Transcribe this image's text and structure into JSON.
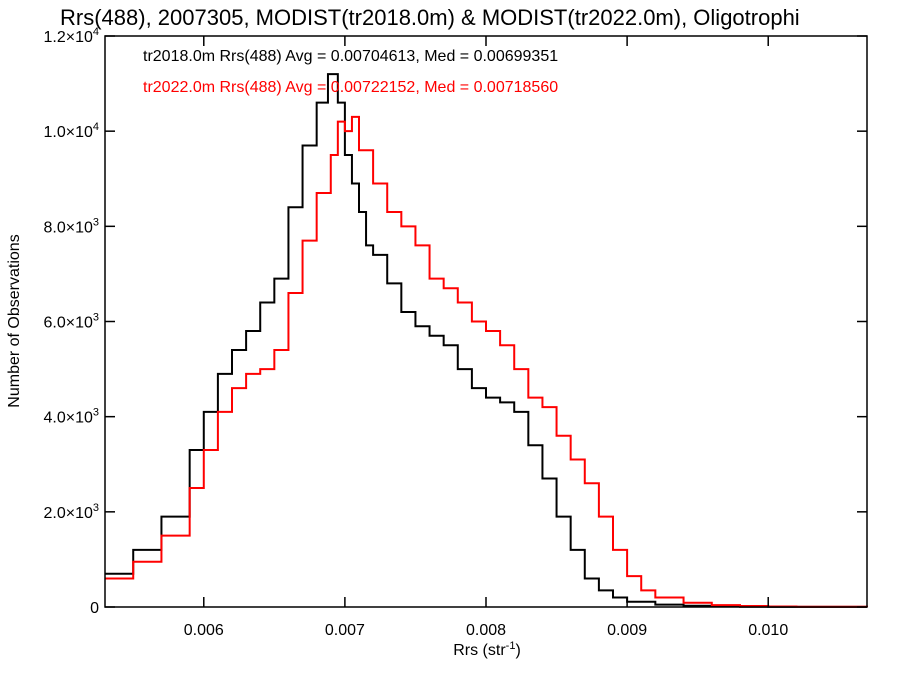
{
  "chart_data": {
    "type": "line",
    "title": "Rrs(488), 2007305, MODIST(tr2018.0m) & MODIST(tr2022.0m), Oligotrophi",
    "xlabel": "Rrs (str",
    "xlabel_sup": "-1",
    "xlabel_end": ")",
    "ylabel": "Number of Observations",
    "xlim": [
      0.0053,
      0.0107
    ],
    "ylim": [
      0,
      12000
    ],
    "x_ticks": [
      {
        "value": 0.006,
        "label": "0.006"
      },
      {
        "value": 0.007,
        "label": "0.007"
      },
      {
        "value": 0.008,
        "label": "0.008"
      },
      {
        "value": 0.009,
        "label": "0.009"
      },
      {
        "value": 0.01,
        "label": "0.010"
      }
    ],
    "y_ticks": [
      {
        "value": 0,
        "label": "0",
        "exp": ""
      },
      {
        "value": 2000,
        "label": "2.0×10",
        "exp": "3"
      },
      {
        "value": 4000,
        "label": "4.0×10",
        "exp": "3"
      },
      {
        "value": 6000,
        "label": "6.0×10",
        "exp": "3"
      },
      {
        "value": 8000,
        "label": "8.0×10",
        "exp": "3"
      },
      {
        "value": 10000,
        "label": "1.0×10",
        "exp": "4"
      },
      {
        "value": 12000,
        "label": "1.2×10",
        "exp": "4"
      }
    ],
    "series": [
      {
        "name": "tr2018.0m",
        "color": "#000000",
        "stats_text": "tr2018.0m Rrs(488) Avg = 0.00704613, Med = 0.00699351",
        "x": [
          0.0053,
          0.0055,
          0.0057,
          0.0059,
          0.006,
          0.0061,
          0.0062,
          0.0063,
          0.0064,
          0.0065,
          0.0066,
          0.0067,
          0.0068,
          0.00688,
          0.00695,
          0.007,
          0.00705,
          0.0071,
          0.00715,
          0.0072,
          0.0073,
          0.0074,
          0.0075,
          0.0076,
          0.0077,
          0.0078,
          0.0079,
          0.008,
          0.0081,
          0.0082,
          0.0083,
          0.0084,
          0.0085,
          0.0086,
          0.0087,
          0.0088,
          0.0089,
          0.009,
          0.0092,
          0.0094,
          0.0096,
          0.0098,
          0.01,
          0.0107
        ],
        "y": [
          700,
          1200,
          1900,
          3300,
          4100,
          4900,
          5400,
          5800,
          6400,
          6900,
          8400,
          9700,
          10600,
          11200,
          10600,
          9500,
          8900,
          8300,
          7600,
          7400,
          6800,
          6200,
          5900,
          5700,
          5500,
          5000,
          4600,
          4400,
          4300,
          4100,
          3400,
          2700,
          1900,
          1200,
          600,
          350,
          200,
          110,
          50,
          25,
          12,
          6,
          3,
          0
        ]
      },
      {
        "name": "tr2022.0m",
        "color": "#ff0000",
        "stats_text": "tr2022.0m Rrs(488) Avg = 0.00722152, Med = 0.00718560",
        "x": [
          0.0053,
          0.0055,
          0.0057,
          0.0059,
          0.006,
          0.0061,
          0.0062,
          0.0063,
          0.0064,
          0.0065,
          0.0066,
          0.0067,
          0.0068,
          0.0069,
          0.00695,
          0.007,
          0.00705,
          0.0071,
          0.0072,
          0.0073,
          0.0074,
          0.0075,
          0.0076,
          0.0077,
          0.0078,
          0.0079,
          0.008,
          0.0081,
          0.0082,
          0.0083,
          0.0084,
          0.0085,
          0.0086,
          0.0087,
          0.0088,
          0.0089,
          0.009,
          0.0091,
          0.0092,
          0.0094,
          0.0096,
          0.0098,
          0.01,
          0.0102,
          0.0107
        ],
        "y": [
          600,
          950,
          1500,
          2500,
          3300,
          4100,
          4600,
          4900,
          5000,
          5400,
          6600,
          7700,
          8700,
          9500,
          10200,
          10000,
          10300,
          9600,
          8900,
          8300,
          8000,
          7600,
          6900,
          6700,
          6400,
          6000,
          5800,
          5500,
          5000,
          4400,
          4200,
          3600,
          3100,
          2600,
          1900,
          1200,
          650,
          350,
          200,
          90,
          40,
          20,
          10,
          5,
          0
        ]
      }
    ]
  }
}
